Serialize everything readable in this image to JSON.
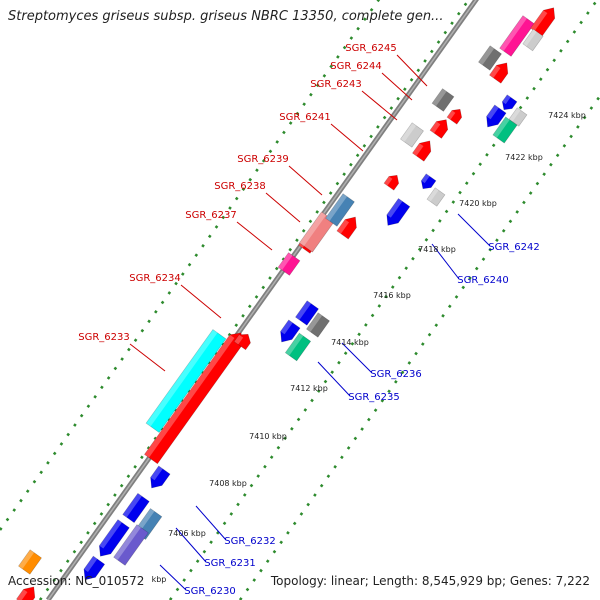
{
  "title": "Streptomyces griseus subsp. griseus NBRC 13350, complete gen...",
  "accession": "Accession: NC_010572",
  "summary": "Topology: linear; Length: 8,545,929 bp; Genes: 7,222",
  "colors": {
    "backbone": "#808080",
    "tick_dots": "#2e8b2e",
    "forward_label": "#cc0000",
    "reverse_label": "#0000cc"
  },
  "scale_labels": [
    "7406 kbp",
    "7408 kbp",
    "7410 kbp",
    "7412 kbp",
    "7414 kbp",
    "7416 kbp",
    "7418 kbp",
    "7420 kbp",
    "7422 kbp",
    "7424 kbp"
  ],
  "forward_gene_labels": [
    "SGR_6245",
    "SGR_6244",
    "SGR_6243",
    "SGR_6241",
    "SGR_6239",
    "SGR_6238",
    "SGR_6237",
    "SGR_6234",
    "SGR_6233"
  ],
  "reverse_gene_labels": [
    "SGR_6242",
    "SGR_6240",
    "SGR_6236",
    "SGR_6235",
    "SGR_6232",
    "SGR_6231",
    "SGR_6230"
  ],
  "feature_colors": {
    "cds_red": "#ff0000",
    "cds_blue": "#0000ee",
    "cyan": "#00ffff",
    "pink": "#f08080",
    "magenta": "#ff1493",
    "gray": "#707070",
    "light_gray": "#cccccc",
    "steel_blue": "#4682b4",
    "spring_green": "#00c080",
    "slate_blue": "#6a5acd",
    "orange": "#ff8c00"
  }
}
